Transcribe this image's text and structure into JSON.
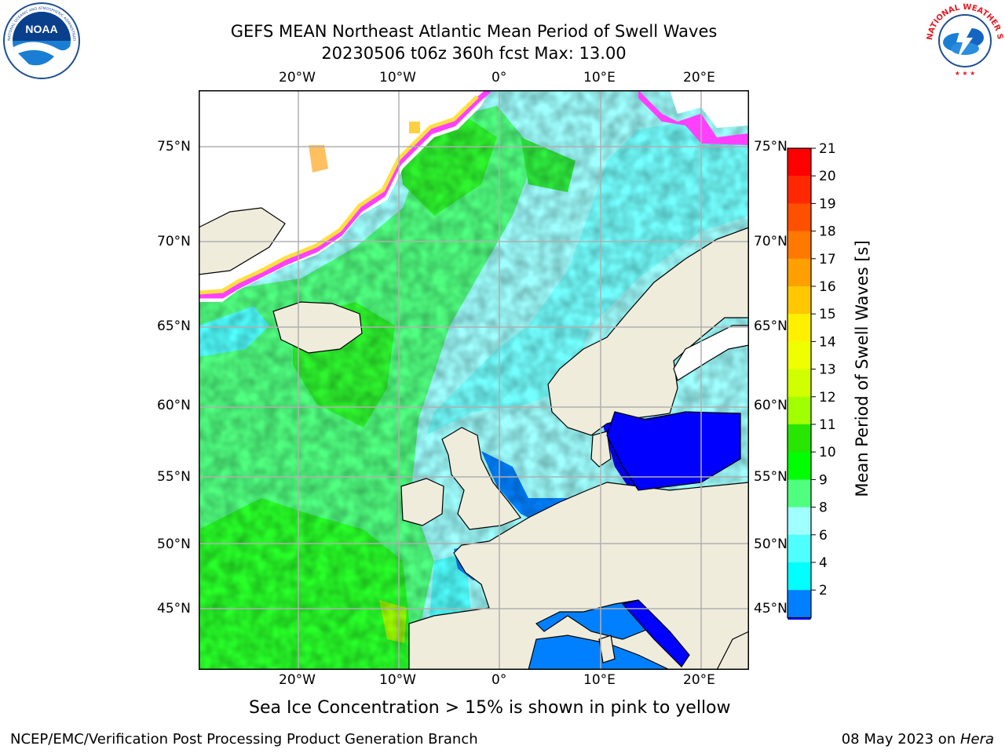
{
  "header": {
    "title_line1": "GEFS MEAN Northeast Atlantic Mean Period of Swell Waves",
    "title_line2": "20230506 t06z 360h fcst   Max: 13.00"
  },
  "logos": {
    "left": {
      "text": "NOAA",
      "ring_text": "NATIONAL OCEANIC AND ATMOSPHERIC ADMINISTRATION · U.S. DEPARTMENT OF COMMERCE"
    },
    "right": {
      "ring_text": "NATIONAL WEATHER SERVICE"
    }
  },
  "map": {
    "lon_labels": [
      "20°W",
      "10°W",
      "0°",
      "10°E",
      "20°E"
    ],
    "lat_labels": [
      "75°N",
      "70°N",
      "65°N",
      "60°N",
      "55°N",
      "50°N",
      "45°N"
    ],
    "land_color": "#efecdc",
    "grid_color": "#b0b0b0"
  },
  "colorbar": {
    "label": "Mean Period of Swell Waves [s]",
    "ticks": [
      "21",
      "20",
      "19",
      "18",
      "17",
      "16",
      "15",
      "14",
      "13",
      "12",
      "11",
      "10",
      "9",
      "8",
      "6",
      "4",
      "2"
    ],
    "colors_top_to_bottom": [
      "#ff0000",
      "#ff2800",
      "#ff5000",
      "#ff7800",
      "#ffa000",
      "#ffc800",
      "#fff000",
      "#f0ff00",
      "#d2ff00",
      "#a0ff00",
      "#28e600",
      "#00ff00",
      "#50ff80",
      "#a0ffff",
      "#50ffff",
      "#00ffff",
      "#0080ff"
    ],
    "under_color": "#0000ff"
  },
  "footer": {
    "note": "Sea Ice Concentration > 15% is shown in pink to yellow",
    "left": "NCEP/EMC/Verification Post Processing Product Generation Branch",
    "right_date": "08 May 2023 on ",
    "right_host": "Hera"
  }
}
